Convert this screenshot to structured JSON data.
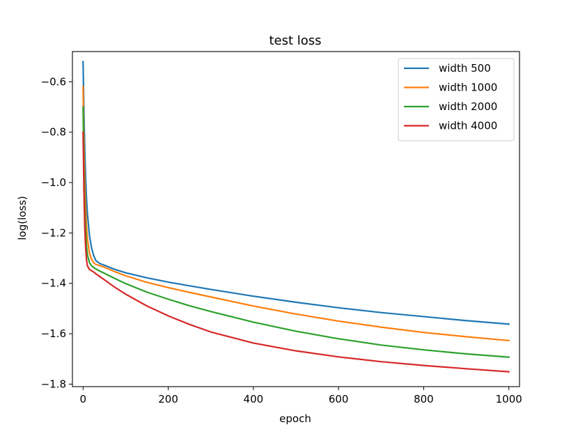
{
  "chart_data": {
    "type": "line",
    "title": "test loss",
    "xlabel": "epoch",
    "ylabel": "log(loss)",
    "xlim": [
      -25,
      1025
    ],
    "ylim": [
      -1.81,
      -0.48
    ],
    "xticks": [
      0,
      200,
      400,
      600,
      800,
      1000
    ],
    "xtick_labels": [
      "0",
      "200",
      "400",
      "600",
      "800",
      "1000"
    ],
    "yticks": [
      -1.8,
      -1.6,
      -1.4,
      -1.2,
      -1.0,
      -0.8,
      -0.6
    ],
    "ytick_labels": [
      "−1.8",
      "−1.6",
      "−1.4",
      "−1.2",
      "−1.0",
      "−0.8",
      "−0.6"
    ],
    "grid": false,
    "legend_position": "top-right",
    "x": [
      0,
      2,
      4,
      6,
      8,
      10,
      15,
      20,
      25,
      30,
      40,
      50,
      75,
      100,
      150,
      200,
      250,
      300,
      400,
      500,
      600,
      700,
      800,
      900,
      1000
    ],
    "series": [
      {
        "name": "width 500",
        "color": "#1f77b4",
        "values": [
          -0.52,
          -0.72,
          -0.87,
          -0.98,
          -1.06,
          -1.12,
          -1.21,
          -1.26,
          -1.29,
          -1.31,
          -1.322,
          -1.328,
          -1.345,
          -1.358,
          -1.378,
          -1.395,
          -1.41,
          -1.424,
          -1.451,
          -1.475,
          -1.497,
          -1.516,
          -1.532,
          -1.548,
          -1.562
        ]
      },
      {
        "name": "width 1000",
        "color": "#ff7f0e",
        "values": [
          -0.62,
          -0.85,
          -1.0,
          -1.1,
          -1.17,
          -1.22,
          -1.28,
          -1.305,
          -1.318,
          -1.325,
          -1.33,
          -1.336,
          -1.354,
          -1.37,
          -1.396,
          -1.417,
          -1.436,
          -1.454,
          -1.49,
          -1.522,
          -1.55,
          -1.574,
          -1.595,
          -1.612,
          -1.627
        ]
      },
      {
        "name": "width 2000",
        "color": "#2ca02c",
        "values": [
          -0.7,
          -0.95,
          -1.1,
          -1.19,
          -1.25,
          -1.285,
          -1.318,
          -1.33,
          -1.337,
          -1.343,
          -1.352,
          -1.36,
          -1.381,
          -1.401,
          -1.435,
          -1.463,
          -1.489,
          -1.512,
          -1.554,
          -1.59,
          -1.62,
          -1.645,
          -1.664,
          -1.68,
          -1.693
        ]
      },
      {
        "name": "width 4000",
        "color": "#d62728",
        "values": [
          -0.8,
          -1.03,
          -1.18,
          -1.26,
          -1.305,
          -1.33,
          -1.345,
          -1.35,
          -1.355,
          -1.362,
          -1.374,
          -1.386,
          -1.416,
          -1.443,
          -1.49,
          -1.529,
          -1.563,
          -1.593,
          -1.637,
          -1.668,
          -1.692,
          -1.711,
          -1.726,
          -1.739,
          -1.751
        ]
      }
    ]
  }
}
